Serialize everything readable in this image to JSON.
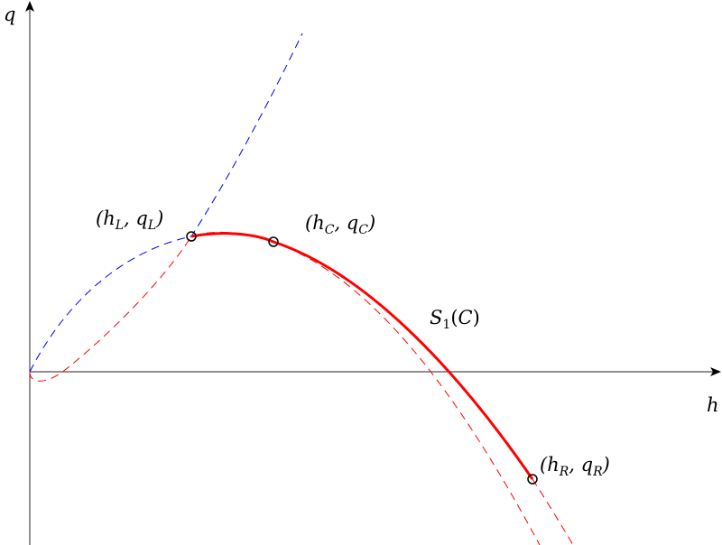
{
  "axes": {
    "x_label": "h",
    "y_label": "q"
  },
  "points": [
    {
      "id": "L",
      "label": "(h_L, q_L)",
      "text": "(hL, qL)"
    },
    {
      "id": "C",
      "label": "(h_C, q_C)",
      "text": "(hC, qC)"
    },
    {
      "id": "R",
      "label": "(h_R, q_R)",
      "text": "(hR, qR)"
    }
  ],
  "curve_label": "S1(C)",
  "colors": {
    "solid_curve": "#ff0000",
    "dashed_red": "#ff0000",
    "dashed_blue": "#0000ff",
    "axes": "#000000"
  }
}
